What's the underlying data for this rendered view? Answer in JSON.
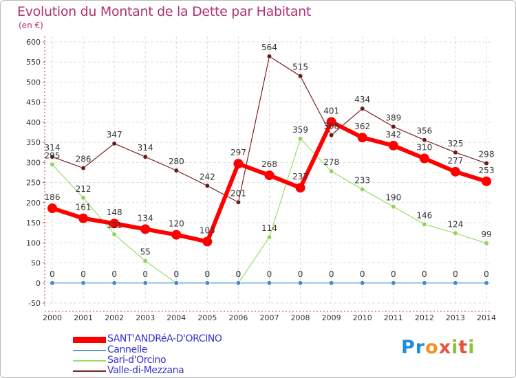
{
  "header": {
    "title": "Evolution du Montant de la Dette par Habitant",
    "subtitle": "(en €)"
  },
  "logo": {
    "text": "Proxiti"
  },
  "legend": {
    "items": [
      "SANT'ANDRéA-D'ORCINO",
      "Cannelle",
      "Sari-d'Orcino",
      "Valle-di-Mezzana"
    ]
  },
  "chart_data": {
    "type": "line",
    "title": "Evolution du Montant de la Dette par Habitant",
    "ylabel": "(en €)",
    "xlabel": "",
    "categories": [
      "2000",
      "2001",
      "2002",
      "2003",
      "2004",
      "2005",
      "2006",
      "2007",
      "2008",
      "2009",
      "2010",
      "2011",
      "2012",
      "2013",
      "2014"
    ],
    "ylim": [
      -50,
      600
    ],
    "yticks": [
      -50,
      0,
      50,
      100,
      150,
      200,
      250,
      300,
      350,
      400,
      450,
      500,
      550,
      600
    ],
    "grid": true,
    "legend_position": "bottom",
    "series": [
      {
        "name": "Valle-di-Mezzana",
        "color": "#7b2222",
        "values": [
          314,
          286,
          347,
          314,
          280,
          242,
          201,
          564,
          515,
          368,
          434,
          389,
          356,
          325,
          298
        ]
      },
      {
        "name": "Sari-d'Orcino",
        "color": "#99dd66",
        "values": [
          295,
          212,
          121,
          55,
          0,
          0,
          0,
          114,
          359,
          278,
          233,
          190,
          146,
          124,
          99
        ]
      },
      {
        "name": "Cannelle",
        "color": "#5b9bd5",
        "values": [
          0,
          0,
          0,
          0,
          0,
          0,
          0,
          0,
          0,
          0,
          0,
          0,
          0,
          0,
          0
        ]
      },
      {
        "name": "SANT'ANDRéA-D'ORCINO",
        "color": "#ff0000",
        "values": [
          186,
          161,
          148,
          134,
          120,
          103,
          297,
          268,
          237,
          401,
          362,
          342,
          310,
          277,
          253
        ]
      }
    ],
    "data_labels": [
      [
        314,
        286,
        347,
        314,
        280,
        242,
        201,
        564,
        515,
        368,
        434,
        389,
        356,
        325,
        298
      ],
      [
        295,
        212,
        121,
        55,
        0,
        0,
        0,
        114,
        359,
        278,
        233,
        190,
        146,
        124,
        99
      ],
      [
        0,
        0,
        0,
        0,
        0,
        0,
        0,
        0,
        0,
        0,
        0,
        0,
        0,
        0,
        0
      ],
      [
        186,
        161,
        148,
        134,
        120,
        103,
        297,
        268,
        237,
        401,
        362,
        342,
        310,
        277,
        253
      ]
    ]
  }
}
